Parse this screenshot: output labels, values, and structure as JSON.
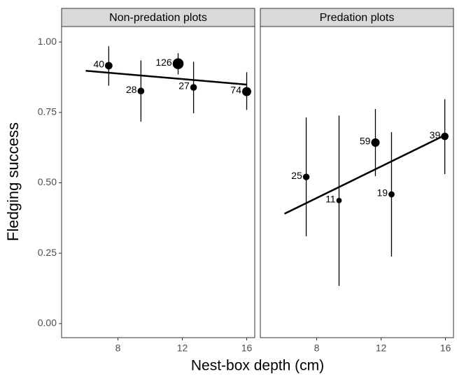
{
  "xlabel": "Nest-box depth (cm)",
  "ylabel": "Fledging success",
  "chart_data": [
    {
      "type": "scatter",
      "title": "Non-predation plots",
      "x": [
        7.43,
        9.43,
        11.74,
        12.7,
        16.0
      ],
      "values": [
        0.916,
        0.826,
        0.923,
        0.839,
        0.824
      ],
      "ci_low": [
        0.845,
        0.717,
        0.885,
        0.747,
        0.759
      ],
      "ci_high": [
        0.985,
        0.935,
        0.96,
        0.93,
        0.893
      ],
      "n": [
        40,
        28,
        126,
        27,
        74
      ],
      "fit": {
        "x": [
          6,
          16
        ],
        "values": [
          0.898,
          0.849
        ]
      },
      "color": "#000000",
      "xlim": [
        4.5,
        16.5
      ],
      "xticks": [
        8,
        12,
        16
      ],
      "ylim": [
        -0.05,
        1.055
      ],
      "yticks": [
        {
          "value": 0,
          "label": "0.00"
        },
        {
          "value": 0.25,
          "label": "0.25"
        },
        {
          "value": 0.5,
          "label": "0.50"
        },
        {
          "value": 0.75,
          "label": "0.75"
        },
        {
          "value": 1,
          "label": "1.00"
        }
      ]
    },
    {
      "type": "scatter",
      "title": "Predation plots",
      "x": [
        7.35,
        9.39,
        11.65,
        12.65,
        15.96
      ],
      "values": [
        0.521,
        0.437,
        0.643,
        0.459,
        0.665
      ],
      "ci_low": [
        0.31,
        0.134,
        0.524,
        0.238,
        0.531
      ],
      "ci_high": [
        0.732,
        0.739,
        0.762,
        0.68,
        0.797
      ],
      "n": [
        25,
        11,
        59,
        19,
        39
      ],
      "fit": {
        "x": [
          6,
          16
        ],
        "values": [
          0.39,
          0.67
        ]
      },
      "color": "#000000",
      "xlim": [
        4.5,
        16.5
      ],
      "xticks": [
        8,
        12,
        16
      ],
      "ylim": [
        -0.05,
        1.055
      ]
    }
  ]
}
